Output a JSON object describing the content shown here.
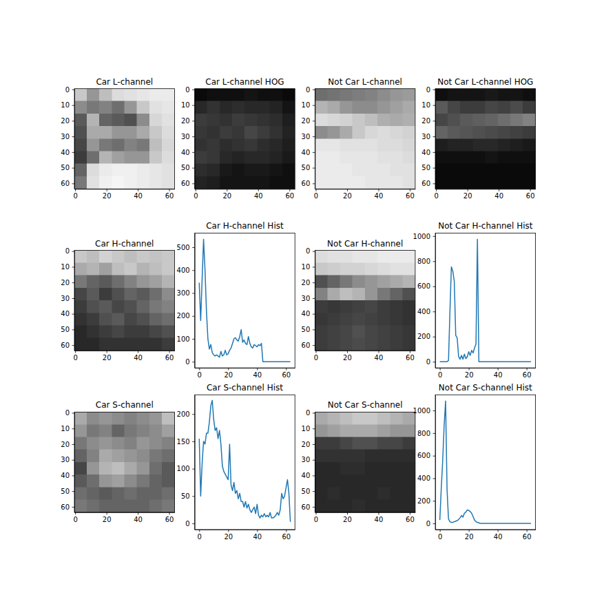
{
  "chart_data": [
    {
      "type": "image",
      "title": "Car L-channel",
      "xlim": [
        -0.5,
        63.5
      ],
      "ylim": [
        63.5,
        -0.5
      ],
      "xticks": [
        0,
        20,
        40,
        60
      ],
      "yticks": [
        0,
        10,
        20,
        30,
        40,
        50,
        60
      ],
      "color_range": [
        0,
        255
      ],
      "cells": [
        [
          200,
          150,
          190,
          220,
          225,
          230,
          235,
          235
        ],
        [
          140,
          120,
          130,
          110,
          150,
          200,
          225,
          230
        ],
        [
          90,
          180,
          100,
          90,
          80,
          140,
          215,
          225
        ],
        [
          80,
          170,
          170,
          150,
          150,
          170,
          200,
          220
        ],
        [
          70,
          150,
          120,
          110,
          130,
          120,
          190,
          215
        ],
        [
          60,
          110,
          180,
          160,
          150,
          150,
          200,
          220
        ],
        [
          100,
          220,
          235,
          240,
          240,
          235,
          230,
          225
        ],
        [
          120,
          225,
          240,
          245,
          240,
          235,
          230,
          225
        ]
      ]
    },
    {
      "type": "image",
      "title": "Car L-channel HOG",
      "xlim": [
        -0.5,
        63.5
      ],
      "ylim": [
        63.5,
        -0.5
      ],
      "xticks": [
        0,
        20,
        40,
        60
      ],
      "yticks": [
        0,
        10,
        20,
        30,
        40,
        50,
        60
      ],
      "color_range": [
        0,
        255
      ],
      "cells": [
        [
          10,
          15,
          15,
          15,
          20,
          15,
          15,
          10
        ],
        [
          40,
          50,
          40,
          45,
          40,
          40,
          35,
          20
        ],
        [
          60,
          55,
          50,
          60,
          55,
          50,
          45,
          30
        ],
        [
          55,
          50,
          60,
          55,
          70,
          60,
          50,
          35
        ],
        [
          50,
          55,
          45,
          50,
          55,
          45,
          40,
          30
        ],
        [
          60,
          55,
          40,
          35,
          40,
          40,
          35,
          25
        ],
        [
          45,
          40,
          25,
          20,
          25,
          25,
          20,
          15
        ],
        [
          35,
          30,
          20,
          20,
          20,
          20,
          15,
          15
        ]
      ]
    },
    {
      "type": "image",
      "title": "Not Car L-channel",
      "xlim": [
        -0.5,
        63.5
      ],
      "ylim": [
        63.5,
        -0.5
      ],
      "xticks": [
        0,
        20,
        40,
        60
      ],
      "yticks": [
        0,
        10,
        20,
        30,
        40,
        50,
        60
      ],
      "color_range": [
        0,
        255
      ],
      "cells": [
        [
          110,
          115,
          120,
          125,
          130,
          140,
          150,
          155
        ],
        [
          180,
          170,
          150,
          140,
          140,
          150,
          160,
          170
        ],
        [
          220,
          215,
          210,
          200,
          190,
          175,
          170,
          175
        ],
        [
          140,
          150,
          170,
          200,
          215,
          220,
          215,
          210
        ],
        [
          230,
          230,
          225,
          225,
          225,
          220,
          220,
          215
        ],
        [
          235,
          235,
          230,
          230,
          230,
          225,
          225,
          220
        ],
        [
          235,
          235,
          235,
          230,
          230,
          230,
          225,
          225
        ],
        [
          235,
          235,
          235,
          235,
          230,
          230,
          230,
          225
        ]
      ]
    },
    {
      "type": "image",
      "title": "Not Car L-channel HOG",
      "xlim": [
        -0.5,
        63.5
      ],
      "ylim": [
        63.5,
        -0.5
      ],
      "xticks": [
        0,
        20,
        40,
        60
      ],
      "yticks": [
        0,
        10,
        20,
        30,
        40,
        50,
        60
      ],
      "color_range": [
        0,
        255
      ],
      "cells": [
        [
          15,
          20,
          20,
          20,
          25,
          20,
          20,
          15
        ],
        [
          90,
          70,
          60,
          60,
          70,
          65,
          75,
          60
        ],
        [
          70,
          80,
          90,
          95,
          100,
          110,
          120,
          130
        ],
        [
          100,
          90,
          85,
          80,
          75,
          70,
          65,
          60
        ],
        [
          30,
          35,
          35,
          40,
          40,
          35,
          30,
          25
        ],
        [
          15,
          15,
          15,
          15,
          20,
          15,
          15,
          15
        ],
        [
          10,
          10,
          10,
          10,
          10,
          10,
          10,
          10
        ],
        [
          10,
          10,
          10,
          10,
          10,
          10,
          10,
          10
        ]
      ]
    },
    {
      "type": "image",
      "title": "Car H-channel",
      "xlim": [
        -0.5,
        63.5
      ],
      "ylim": [
        63.5,
        -0.5
      ],
      "xticks": [
        0,
        20,
        40,
        60
      ],
      "yticks": [
        0,
        10,
        20,
        30,
        40,
        50,
        60
      ],
      "color_range": [
        0,
        255
      ],
      "cells": [
        [
          200,
          190,
          210,
          200,
          190,
          200,
          195,
          200
        ],
        [
          170,
          180,
          160,
          190,
          200,
          180,
          190,
          200
        ],
        [
          120,
          100,
          90,
          110,
          130,
          150,
          160,
          180
        ],
        [
          70,
          90,
          60,
          80,
          100,
          90,
          110,
          140
        ],
        [
          60,
          80,
          90,
          70,
          80,
          100,
          120,
          130
        ],
        [
          50,
          60,
          80,
          90,
          70,
          80,
          100,
          110
        ],
        [
          40,
          50,
          60,
          70,
          60,
          60,
          70,
          80
        ],
        [
          40,
          40,
          50,
          50,
          50,
          50,
          50,
          60
        ]
      ]
    },
    {
      "type": "line",
      "title": "Car H-channel Hist",
      "color": "#1f77b4",
      "xlim": [
        -3.15,
        66.15
      ],
      "ylim": [
        -26.75,
        561.75
      ],
      "xticks": [
        0,
        20,
        40,
        60
      ],
      "yticks": [
        0,
        100,
        200,
        300,
        400,
        500
      ],
      "x": [
        0,
        1,
        2,
        3,
        4,
        5,
        6,
        7,
        8,
        9,
        10,
        11,
        12,
        13,
        14,
        15,
        16,
        17,
        18,
        19,
        20,
        21,
        22,
        23,
        24,
        25,
        26,
        27,
        28,
        29,
        30,
        31,
        32,
        33,
        34,
        35,
        36,
        37,
        38,
        39,
        40,
        41,
        42,
        43,
        44,
        45,
        46,
        47,
        48,
        49,
        50,
        51,
        52,
        53,
        54,
        55,
        56,
        57,
        58,
        59,
        60,
        61,
        62,
        63
      ],
      "values": [
        345,
        180,
        360,
        535,
        400,
        220,
        100,
        55,
        75,
        40,
        30,
        25,
        30,
        25,
        20,
        45,
        25,
        30,
        50,
        30,
        35,
        50,
        60,
        80,
        100,
        105,
        95,
        90,
        110,
        140,
        85,
        95,
        80,
        75,
        110,
        80,
        65,
        60,
        75,
        70,
        65,
        75,
        70,
        80,
        0,
        0,
        0,
        0,
        0,
        0,
        0,
        0,
        0,
        0,
        0,
        0,
        0,
        0,
        0,
        0,
        0,
        0,
        0,
        0
      ]
    },
    {
      "type": "image",
      "title": "Not Car H-channel",
      "xlim": [
        -0.5,
        63.5
      ],
      "ylim": [
        63.5,
        -0.5
      ],
      "xticks": [
        0,
        20,
        40,
        60
      ],
      "yticks": [
        0,
        10,
        20,
        30,
        40,
        50,
        60
      ],
      "color_range": [
        0,
        255
      ],
      "cells": [
        [
          220,
          225,
          225,
          230,
          230,
          235,
          235,
          235
        ],
        [
          200,
          205,
          210,
          210,
          215,
          220,
          225,
          225
        ],
        [
          80,
          100,
          120,
          140,
          150,
          160,
          170,
          180
        ],
        [
          130,
          170,
          190,
          180,
          150,
          120,
          100,
          80
        ],
        [
          60,
          55,
          60,
          65,
          70,
          60,
          55,
          50
        ],
        [
          55,
          60,
          65,
          70,
          65,
          60,
          55,
          50
        ],
        [
          60,
          65,
          70,
          80,
          70,
          65,
          60,
          55
        ],
        [
          60,
          65,
          70,
          75,
          70,
          65,
          60,
          55
        ]
      ]
    },
    {
      "type": "line",
      "title": "Not Car H-channel Hist",
      "color": "#1f77b4",
      "xlim": [
        -3.15,
        66.15
      ],
      "ylim": [
        -48.75,
        1023.75
      ],
      "xticks": [
        0,
        20,
        40,
        60
      ],
      "yticks": [
        0,
        200,
        400,
        600,
        800,
        1000
      ],
      "x": [
        0,
        1,
        2,
        3,
        4,
        5,
        6,
        7,
        8,
        9,
        10,
        11,
        12,
        13,
        14,
        15,
        16,
        17,
        18,
        19,
        20,
        21,
        22,
        23,
        24,
        25,
        26,
        27,
        28,
        29,
        30,
        31,
        32,
        33,
        34,
        35,
        36,
        37,
        38,
        39,
        40,
        41,
        42,
        43,
        44,
        45,
        46,
        47,
        48,
        49,
        50,
        51,
        52,
        53,
        54,
        55,
        56,
        57,
        58,
        59,
        60,
        61,
        62,
        63
      ],
      "values": [
        0,
        0,
        0,
        0,
        0,
        0,
        10,
        400,
        755,
        720,
        640,
        210,
        190,
        40,
        20,
        50,
        20,
        60,
        25,
        40,
        80,
        50,
        90,
        70,
        110,
        140,
        975,
        0,
        0,
        0,
        0,
        0,
        0,
        0,
        0,
        0,
        0,
        0,
        0,
        0,
        0,
        0,
        0,
        0,
        0,
        0,
        0,
        0,
        0,
        0,
        0,
        0,
        0,
        0,
        0,
        0,
        0,
        0,
        0,
        0,
        0,
        0,
        0,
        0
      ]
    },
    {
      "type": "image",
      "title": "Car S-channel",
      "xlim": [
        -0.5,
        63.5
      ],
      "ylim": [
        63.5,
        -0.5
      ],
      "xticks": [
        0,
        20,
        40,
        60
      ],
      "yticks": [
        0,
        10,
        20,
        30,
        40,
        50,
        60
      ],
      "color_range": [
        0,
        255
      ],
      "cells": [
        [
          170,
          140,
          150,
          140,
          130,
          140,
          150,
          190
        ],
        [
          150,
          120,
          130,
          100,
          120,
          130,
          140,
          160
        ],
        [
          120,
          140,
          150,
          140,
          130,
          150,
          140,
          130
        ],
        [
          100,
          130,
          170,
          160,
          150,
          140,
          120,
          110
        ],
        [
          70,
          150,
          180,
          190,
          170,
          150,
          110,
          90
        ],
        [
          90,
          110,
          150,
          160,
          140,
          120,
          100,
          90
        ],
        [
          110,
          100,
          90,
          100,
          110,
          100,
          100,
          110
        ],
        [
          120,
          110,
          100,
          100,
          100,
          100,
          110,
          120
        ]
      ]
    },
    {
      "type": "line",
      "title": "Car S-channel Hist",
      "color": "#1f77b4",
      "xlim": [
        -3.15,
        66.15
      ],
      "ylim": [
        -11.2,
        235.2
      ],
      "xticks": [
        0,
        20,
        40,
        60
      ],
      "yticks": [
        0,
        50,
        100,
        150,
        200
      ],
      "x": [
        0,
        1,
        2,
        3,
        4,
        5,
        6,
        7,
        8,
        9,
        10,
        11,
        12,
        13,
        14,
        15,
        16,
        17,
        18,
        19,
        20,
        21,
        22,
        23,
        24,
        25,
        26,
        27,
        28,
        29,
        30,
        31,
        32,
        33,
        34,
        35,
        36,
        37,
        38,
        39,
        40,
        41,
        42,
        43,
        44,
        45,
        46,
        47,
        48,
        49,
        50,
        51,
        52,
        53,
        54,
        55,
        56,
        57,
        58,
        59,
        60,
        61,
        62,
        63
      ],
      "values": [
        155,
        50,
        110,
        150,
        145,
        165,
        165,
        185,
        215,
        225,
        190,
        170,
        175,
        155,
        170,
        145,
        105,
        95,
        90,
        85,
        80,
        145,
        70,
        60,
        75,
        55,
        60,
        45,
        55,
        40,
        40,
        30,
        40,
        28,
        35,
        25,
        20,
        25,
        30,
        18,
        35,
        15,
        10,
        15,
        12,
        18,
        12,
        15,
        12,
        20,
        10,
        10,
        12,
        15,
        20,
        15,
        25,
        55,
        45,
        50,
        65,
        80,
        55,
        3
      ]
    },
    {
      "type": "image",
      "title": "Not Car S-channel",
      "xlim": [
        -0.5,
        63.5
      ],
      "ylim": [
        63.5,
        -0.5
      ],
      "xticks": [
        0,
        20,
        40,
        60
      ],
      "yticks": [
        0,
        10,
        20,
        30,
        40,
        50,
        60
      ],
      "color_range": [
        0,
        255
      ],
      "cells": [
        [
          170,
          180,
          190,
          200,
          200,
          190,
          180,
          170
        ],
        [
          150,
          160,
          170,
          170,
          170,
          160,
          150,
          150
        ],
        [
          60,
          60,
          70,
          80,
          80,
          70,
          70,
          60
        ],
        [
          50,
          50,
          50,
          50,
          45,
          45,
          45,
          45
        ],
        [
          40,
          40,
          45,
          45,
          40,
          40,
          40,
          40
        ],
        [
          40,
          40,
          40,
          40,
          40,
          40,
          40,
          40
        ],
        [
          40,
          45,
          40,
          40,
          40,
          45,
          40,
          40
        ],
        [
          40,
          40,
          40,
          45,
          40,
          40,
          40,
          40
        ]
      ]
    },
    {
      "type": "line",
      "title": "Not Car S-channel Hist",
      "color": "#1f77b4",
      "xlim": [
        -3.15,
        66.15
      ],
      "ylim": [
        -54.25,
        1139.25
      ],
      "xticks": [
        0,
        20,
        40,
        60
      ],
      "yticks": [
        0,
        200,
        400,
        600,
        800,
        1000
      ],
      "x": [
        0,
        1,
        2,
        3,
        4,
        5,
        6,
        7,
        8,
        9,
        10,
        11,
        12,
        13,
        14,
        15,
        16,
        17,
        18,
        19,
        20,
        21,
        22,
        23,
        24,
        25,
        26,
        27,
        28,
        29,
        30,
        31,
        32,
        33,
        34,
        35,
        36,
        37,
        38,
        39,
        40,
        41,
        42,
        43,
        44,
        45,
        46,
        47,
        48,
        49,
        50,
        51,
        52,
        53,
        54,
        55,
        56,
        57,
        58,
        59,
        60,
        61,
        62,
        63
      ],
      "values": [
        30,
        310,
        560,
        870,
        1085,
        300,
        40,
        15,
        10,
        10,
        15,
        20,
        25,
        35,
        50,
        70,
        55,
        90,
        100,
        120,
        115,
        105,
        90,
        60,
        30,
        15,
        10,
        5,
        0,
        0,
        0,
        0,
        0,
        0,
        0,
        0,
        0,
        0,
        0,
        0,
        0,
        0,
        0,
        0,
        0,
        0,
        0,
        0,
        0,
        0,
        0,
        0,
        0,
        0,
        0,
        0,
        0,
        0,
        0,
        0,
        0,
        0,
        0,
        0
      ]
    }
  ]
}
